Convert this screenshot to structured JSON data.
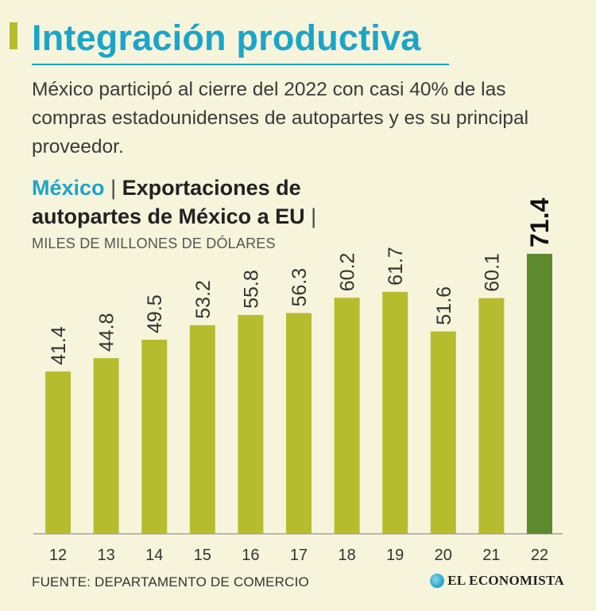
{
  "title": "Integración productiva",
  "subtitle": "México participó al cierre del 2022 con casi 40% de las compras estadounidenses de autopartes y es su principal proveedor.",
  "chart_heading": {
    "country": "México",
    "separator": "|",
    "text": "Exportaciones de autopartes de México a EU",
    "trailing_separator": "|"
  },
  "unit_label": "MILES DE MILLONES DE DÓLARES",
  "source": "FUENTE: DEPARTAMENTO DE COMERCIO",
  "brand": "EL ECONOMISTA",
  "colors": {
    "bar": "#b5bd2f",
    "bar_highlight": "#5c8a2c",
    "title": "#1aa5c9",
    "background": "#f7f4dc"
  },
  "chart_data": {
    "type": "bar",
    "title": "Exportaciones de autopartes de México a EU",
    "ylabel": "Miles de millones de dólares",
    "categories": [
      "12",
      "13",
      "14",
      "15",
      "16",
      "17",
      "18",
      "19",
      "20",
      "21",
      "22"
    ],
    "values": [
      41.4,
      44.8,
      49.5,
      53.2,
      55.8,
      56.3,
      60.2,
      61.7,
      51.6,
      60.1,
      71.4
    ],
    "value_labels": [
      "41.4",
      "44.8",
      "49.5",
      "53.2",
      "55.8",
      "56.3",
      "60.2",
      "61.7",
      "51.6",
      "60.1",
      "71.4"
    ],
    "highlight_index": 10,
    "ylim": [
      0,
      80
    ],
    "grid": false
  }
}
